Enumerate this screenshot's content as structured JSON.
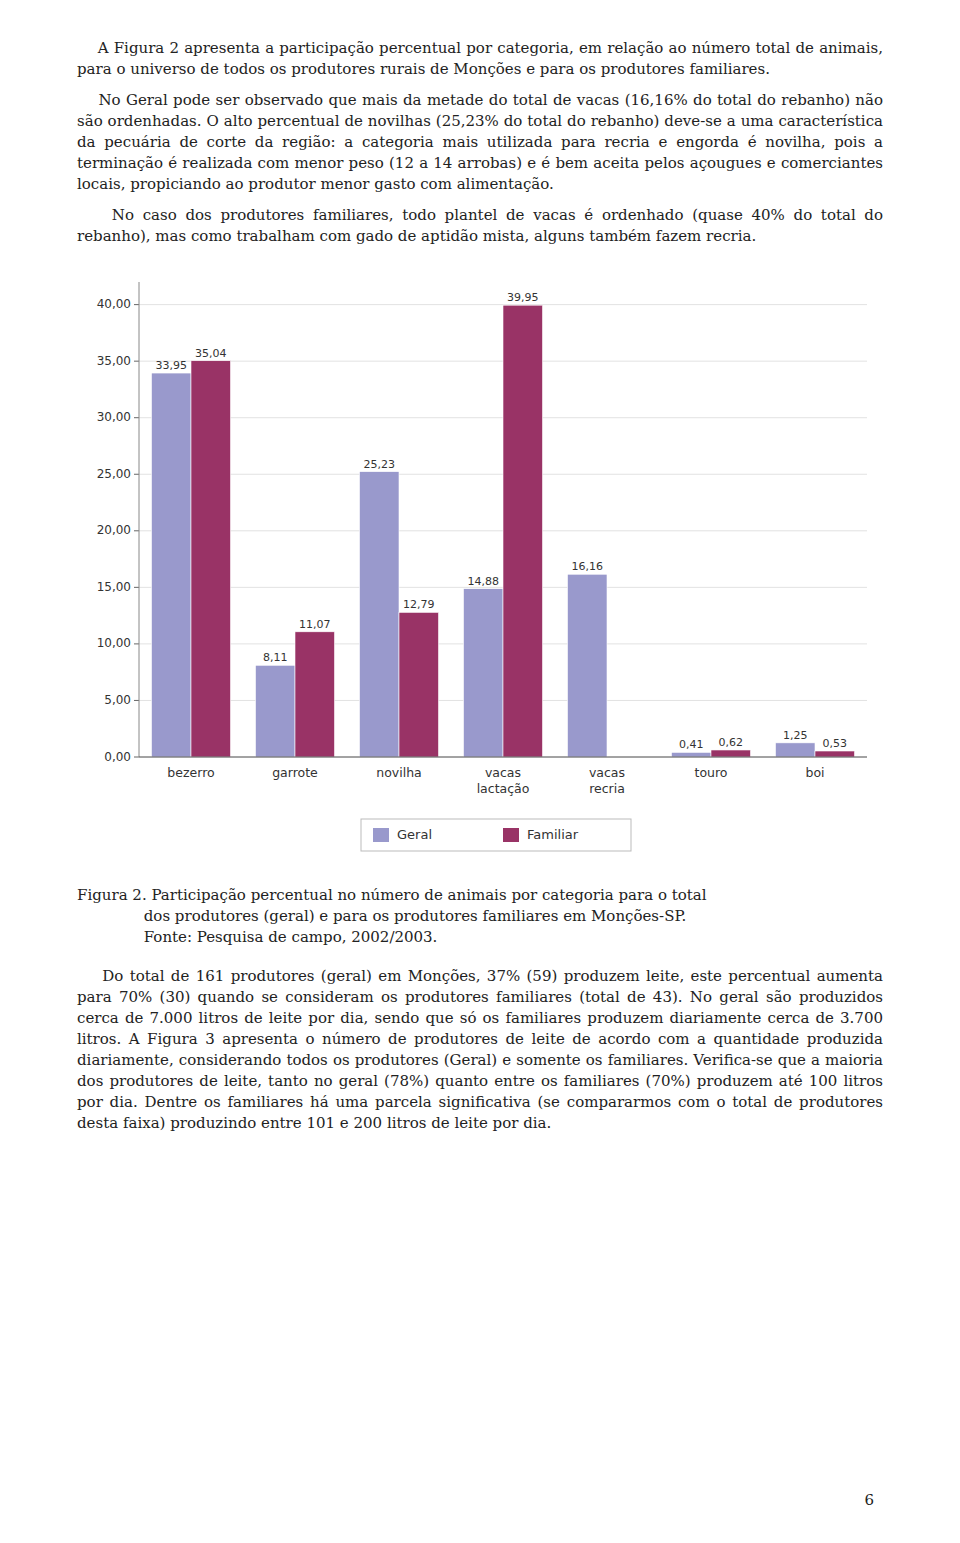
{
  "chart_data": {
    "type": "bar",
    "title": "Figura 2. Participação percentual no número de animais por categoria para o total\n              dos produtores (geral) e para os produtores familiares em Monções-SP.\n              Fonte: Pesquisa de campo, 2002/2003.",
    "categories": [
      "bezerro",
      "garrote",
      "novilha",
      "vacas\nlactação",
      "vacas\nrecria",
      "touro",
      "boi"
    ],
    "series": [
      {
        "name": "Geral",
        "color": "#9999cc",
        "values": [
          33.95,
          8.11,
          25.23,
          14.88,
          16.16,
          0.41,
          1.25
        ],
        "value_labels": [
          "33,95",
          "8,11",
          "25,23",
          "14,88",
          "16,16",
          "0,41",
          "1,25"
        ]
      },
      {
        "name": "Familiar",
        "color": "#993366",
        "values": [
          35.04,
          11.07,
          12.79,
          39.95,
          0.0,
          0.62,
          0.53
        ],
        "value_labels": [
          "35,04",
          "11,07",
          "12,79",
          "39,95",
          null,
          "0,62",
          "0,53"
        ]
      }
    ],
    "ylim": [
      0,
      42
    ],
    "yticks": [
      {
        "value": 0.0,
        "label": "0,00"
      },
      {
        "value": 5.0,
        "label": "5,00"
      },
      {
        "value": 10.0,
        "label": "10,00"
      },
      {
        "value": 15.0,
        "label": "15,00"
      },
      {
        "value": 20.0,
        "label": "20,00"
      },
      {
        "value": 25.0,
        "label": "25,00"
      },
      {
        "value": 30.0,
        "label": "30,00"
      },
      {
        "value": 35.0,
        "label": "35,00"
      },
      {
        "value": 40.0,
        "label": "40,00"
      }
    ],
    "grid": true,
    "legend": "bottom",
    "data_labels": true,
    "annotations": [
      "    A Figura 2 apresenta a participação percentual por categoria, em relação ao número total de animais, para o universo de todos os produtores rurais de Monções e para os produtores familiares.",
      "    No Geral pode ser observado que mais da metade do total de vacas (16,16% do total do rebanho) não são ordenhadas. O alto percentual de novilhas (25,23% do total do rebanho) deve-se a uma característica da pecuária de corte da região: a categoria mais utilizada para recria e engorda é novilha, pois a terminação é realizada com menor peso (12 a 14 arrobas) e é bem aceita pelos açougues e comerciantes locais, propiciando ao produtor menor gasto com alimentação.",
      "    No caso dos produtores familiares, todo plantel de vacas é ordenhado (quase 40% do total do rebanho), mas como trabalham com gado de aptidão mista, alguns também fazem recria.",
      "    Do total de 161 produtores (geral) em Monções, 37% (59) produzem leite, este percentual aumenta para 70% (30) quando se consideram os produtores familiares (total de 43). No geral são produzidos cerca de 7.000 litros de leite por dia, sendo que só os familiares produzem diariamente cerca de 3.700 litros. A Figura 3 apresenta o número de produtores de leite de acordo com a quantidade produzida diariamente, considerando todos os produtores (Geral) e somente os familiares. Verifica-se que a maioria dos produtores de leite, tanto no geral (78%) quanto entre os familiares (70%) produzem até 100 litros por dia. Dentre os familiares há uma parcela significativa (se compararmos com o total de produtores desta faixa) produzindo entre 101 e 200 litros de leite por dia.",
      "6"
    ]
  }
}
